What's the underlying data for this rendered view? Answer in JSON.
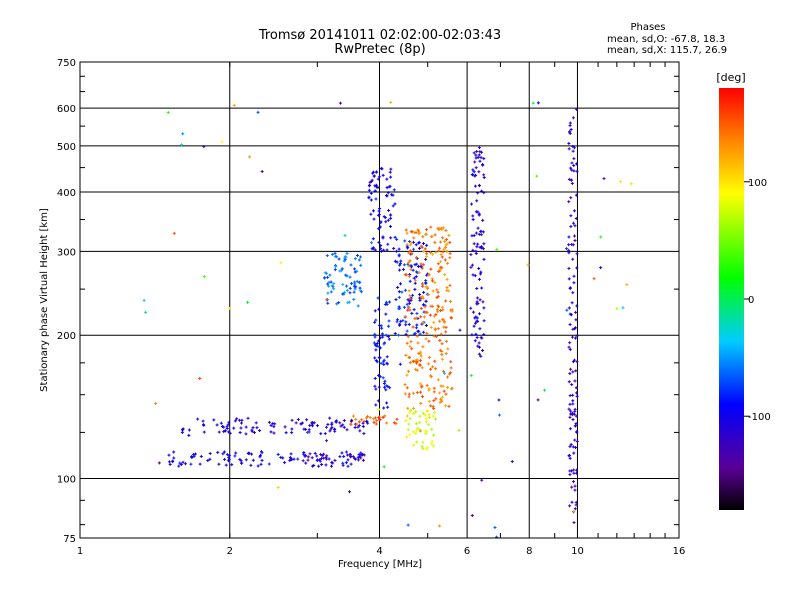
{
  "chart_data": {
    "type": "scatter",
    "title": "Tromsø 20141011 02:02:00-02:03:43",
    "subtitle": "RwPretec (8p)",
    "phase_box": {
      "heading": "Phases",
      "line_o": "mean, sd,O: -67.8, 18.3",
      "line_x": "mean, sd,X: 115.7, 26.9"
    },
    "xlabel": "Frequency [MHz]",
    "ylabel": "Stationary phase Virtual Height [km]",
    "x_scale": "log",
    "y_scale": "log",
    "xlim": [
      1,
      16
    ],
    "ylim": [
      75,
      750
    ],
    "x_ticks": [
      1,
      2,
      4,
      6,
      8,
      10,
      16
    ],
    "x_tick_labels": [
      "1",
      "2",
      "4",
      "6",
      "8",
      "10",
      "16"
    ],
    "y_ticks": [
      75,
      100,
      200,
      300,
      400,
      500,
      600,
      750
    ],
    "y_tick_labels": [
      "75",
      "100",
      "200",
      "300",
      "400",
      "500",
      "600",
      "750"
    ],
    "grid": true,
    "colorbar": {
      "label": "[deg]",
      "range": [
        -180,
        180
      ],
      "ticks": [
        -100,
        0,
        100
      ],
      "tick_labels": [
        "-100",
        "0",
        "100"
      ],
      "colormap": "rainbow (black-violet-blue-cyan-green-yellow-orange-red)"
    },
    "point_groups": [
      {
        "feature": "E-layer upper band",
        "x_range": [
          1.6,
          3.8
        ],
        "y_range": [
          124,
          134
        ],
        "phase_deg": -110
      },
      {
        "feature": "E-layer lower band",
        "x_range": [
          1.5,
          3.7
        ],
        "y_range": [
          106,
          114
        ],
        "phase_deg": -100
      },
      {
        "feature": "E-layer deep blue",
        "x_range": [
          2.8,
          3.8
        ],
        "y_range": [
          109,
          113
        ],
        "phase_deg": -130
      },
      {
        "feature": "E-layer orange streak",
        "x_range": [
          3.5,
          4.4
        ],
        "y_range": [
          130,
          136
        ],
        "phase_deg": 155
      },
      {
        "feature": "Near-vertical trace",
        "x_range": [
          3.9,
          4.2
        ],
        "y_range": [
          140,
          240
        ],
        "phase_deg": -90
      },
      {
        "feature": "F-layer cyan cluster",
        "x_range": [
          3.1,
          3.7
        ],
        "y_range": [
          230,
          300
        ],
        "phase_deg": -60
      },
      {
        "feature": "F-layer blue trace",
        "x_range": [
          3.8,
          4.3
        ],
        "y_range": [
          300,
          450
        ],
        "phase_deg": -100
      },
      {
        "feature": "F-layer O trace",
        "x_range": [
          4.3,
          5.0
        ],
        "y_range": [
          200,
          320
        ],
        "phase_deg": -85
      },
      {
        "feature": "F-layer X trace",
        "x_range": [
          4.5,
          5.6
        ],
        "y_range": [
          140,
          340
        ],
        "phase_deg": 140
      },
      {
        "feature": "Yellow-green scatter",
        "x_range": [
          4.5,
          5.2
        ],
        "y_range": [
          115,
          140
        ],
        "phase_deg": 80
      },
      {
        "feature": "Column near 6.3 MHz",
        "x_range": [
          6.1,
          6.5
        ],
        "y_range": [
          180,
          500
        ],
        "phase_deg": -110
      },
      {
        "feature": "Column near 10 MHz",
        "x_range": [
          9.6,
          10.0
        ],
        "y_range": [
          80,
          600
        ],
        "phase_deg": -120
      },
      {
        "feature": "Scattered points",
        "x_range": [
          1.2,
          13
        ],
        "y_range": [
          75,
          620
        ],
        "phase_deg": 0
      }
    ]
  }
}
